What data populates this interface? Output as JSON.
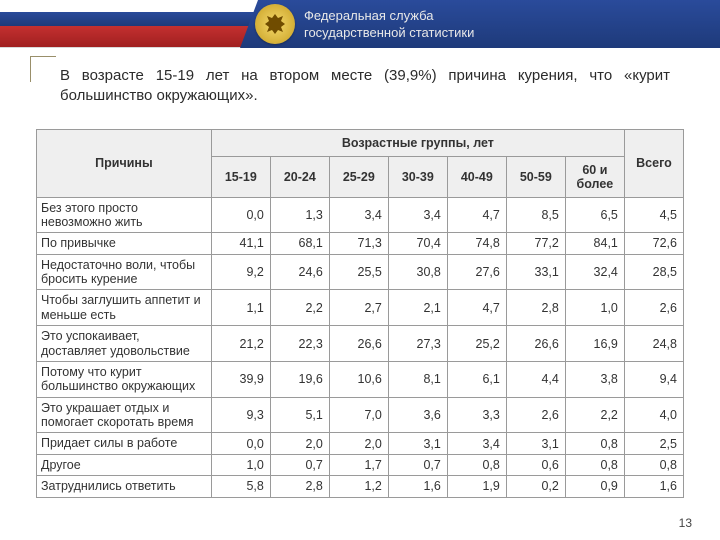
{
  "header": {
    "org_line1": "Федеральная служба",
    "org_line2": "государственной статистики"
  },
  "caption": "В возрасте 15-19 лет на втором месте (39,9%) причина курения, что «курит большинство окружающих».",
  "table": {
    "reasons_header": "Причины",
    "age_groups_header": "Возрастные группы, лет",
    "total_header": "Всего",
    "age_labels": [
      "15-19",
      "20-24",
      "25-29",
      "30-39",
      "40-49",
      "50-59",
      "60 и более"
    ],
    "rows": [
      {
        "reason": "Без этого просто невозможно жить",
        "v": [
          "0,0",
          "1,3",
          "3,4",
          "3,4",
          "4,7",
          "8,5",
          "6,5",
          "4,5"
        ]
      },
      {
        "reason": "По привычке",
        "v": [
          "41,1",
          "68,1",
          "71,3",
          "70,4",
          "74,8",
          "77,2",
          "84,1",
          "72,6"
        ]
      },
      {
        "reason": "Недостаточно воли, чтобы бросить курение",
        "v": [
          "9,2",
          "24,6",
          "25,5",
          "30,8",
          "27,6",
          "33,1",
          "32,4",
          "28,5"
        ]
      },
      {
        "reason": "Чтобы заглушить аппетит и меньше есть",
        "v": [
          "1,1",
          "2,2",
          "2,7",
          "2,1",
          "4,7",
          "2,8",
          "1,0",
          "2,6"
        ]
      },
      {
        "reason": "Это успокаивает, доставляет удовольствие",
        "v": [
          "21,2",
          "22,3",
          "26,6",
          "27,3",
          "25,2",
          "26,6",
          "16,9",
          "24,8"
        ]
      },
      {
        "reason": "Потому что курит большинство окружающих",
        "v": [
          "39,9",
          "19,6",
          "10,6",
          "8,1",
          "6,1",
          "4,4",
          "3,8",
          "9,4"
        ]
      },
      {
        "reason": "Это украшает отдых и помогает скоротать время",
        "v": [
          "9,3",
          "5,1",
          "7,0",
          "3,6",
          "3,3",
          "2,6",
          "2,2",
          "4,0"
        ]
      },
      {
        "reason": "Придает силы в работе",
        "v": [
          "0,0",
          "2,0",
          "2,0",
          "3,1",
          "3,4",
          "3,1",
          "0,8",
          "2,5"
        ]
      },
      {
        "reason": "Другое",
        "v": [
          "1,0",
          "0,7",
          "1,7",
          "0,7",
          "0,8",
          "0,6",
          "0,8",
          "0,8"
        ]
      },
      {
        "reason": "Затруднились ответить",
        "v": [
          "5,8",
          "2,8",
          "1,2",
          "1,6",
          "1,9",
          "0,2",
          "0,9",
          "1,6"
        ]
      }
    ]
  },
  "page_number": "13",
  "colors": {
    "banner_blue": "#1e3a7a",
    "banner_red": "#a02020",
    "header_bg": "#efefef",
    "border": "#9a9a9a"
  }
}
